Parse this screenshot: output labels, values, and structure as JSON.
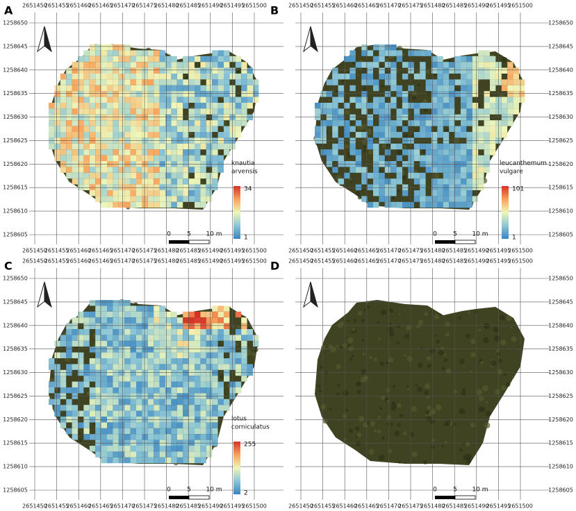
{
  "x_ticks": [
    2651450,
    2651455,
    2651460,
    2651465,
    2651470,
    2651475,
    2651480,
    2651485,
    2651490,
    2651495,
    2651500
  ],
  "y_ticks": [
    1258650,
    1258645,
    1258640,
    1258635,
    1258630,
    1258625,
    1258620,
    1258615,
    1258610,
    1258605
  ],
  "panels": [
    {
      "label": "A",
      "legend": {
        "title": [
          "knautia",
          "arvensis"
        ],
        "max": 34,
        "min": 1
      },
      "scale_bar": [
        "0",
        "5",
        "10 m"
      ]
    },
    {
      "label": "B",
      "legend": {
        "title": [
          "leucanthemum",
          "vulgare"
        ],
        "max": 101,
        "min": 1
      },
      "scale_bar": [
        "0",
        "5",
        "10 m"
      ]
    },
    {
      "label": "C",
      "legend": {
        "title": [
          "lotus",
          "corniculatus"
        ],
        "max": 255,
        "min": 2
      },
      "scale_bar": [
        "0",
        "5",
        "10 m"
      ]
    },
    {
      "label": "D",
      "scale_bar": [
        "0",
        "5",
        "10 m"
      ]
    }
  ]
}
